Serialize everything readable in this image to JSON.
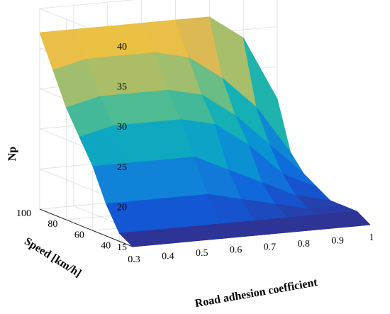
{
  "chart_data": {
    "type": "surface3d",
    "title": "",
    "xlabel": "Road adhesion coefficient",
    "ylabel": "Speed [km/h]",
    "zlabel": "Np",
    "xticks": [
      "0.3",
      "0.4",
      "0.5",
      "0.6",
      "0.7",
      "0.8",
      "0.9",
      "1"
    ],
    "yticks": [
      "40",
      "60",
      "80",
      "100"
    ],
    "zticks": [
      "15",
      "20",
      "25",
      "30",
      "35",
      "40"
    ],
    "xlim": [
      0.3,
      1.0
    ],
    "ylim": [
      30,
      100
    ],
    "zlim": [
      15,
      40
    ],
    "grid": true,
    "colormap": "parula",
    "speed": [
      30,
      40,
      50,
      60,
      70,
      80,
      90,
      100
    ],
    "adhesion": [
      0.3,
      0.4,
      0.5,
      0.6,
      0.7,
      0.8,
      0.9,
      1.0
    ],
    "np": [
      [
        15,
        15,
        15,
        15,
        15,
        15,
        15,
        15
      ],
      [
        16,
        16,
        16,
        16,
        16,
        16,
        16,
        16
      ],
      [
        19,
        19,
        19,
        19,
        18,
        17,
        16,
        16
      ],
      [
        23,
        23,
        23,
        23,
        21,
        19,
        17,
        16
      ],
      [
        26,
        27,
        27,
        27,
        26,
        23,
        19,
        17
      ],
      [
        29,
        30,
        30,
        30,
        29,
        26,
        22,
        18
      ],
      [
        33,
        34,
        34,
        34,
        33,
        30,
        26,
        20
      ],
      [
        37,
        37,
        37,
        37,
        37,
        37,
        34,
        26
      ]
    ]
  }
}
